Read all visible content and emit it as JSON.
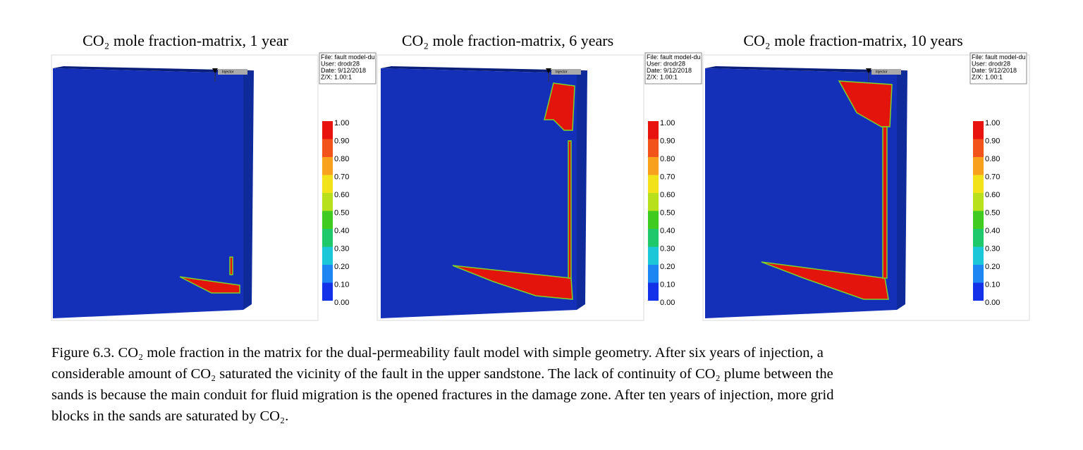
{
  "panels": [
    {
      "title": "CO₂ mole fraction-matrix, 1 year",
      "info": [
        "File: fault model-du",
        "User:  drodr28",
        "Date: 9/12/2018",
        "Z/X: 1.00:1"
      ],
      "injector": "Injector",
      "colorbar": [
        "1.00",
        "0.90",
        "0.80",
        "0.70",
        "0.60",
        "0.50",
        "0.40",
        "0.30",
        "0.20",
        "0.10",
        "0.00"
      ]
    },
    {
      "title": "CO₂ mole fraction-matrix, 6 years",
      "info": [
        "File: fault model-du",
        "User:  drodr28",
        "Date: 9/12/2018",
        "Z/X: 1.00:1"
      ],
      "injector": "Injector",
      "colorbar": [
        "1.00",
        "0.90",
        "0.80",
        "0.70",
        "0.60",
        "0.50",
        "0.40",
        "0.30",
        "0.20",
        "0.10",
        "0.00"
      ]
    },
    {
      "title": "CO₂ mole fraction-matrix, 10 years",
      "info": [
        "File: fault model-du",
        "User:  drodr28",
        "Date: 9/12/2018",
        "Z/X: 1.00:1"
      ],
      "injector": "Injector",
      "colorbar": [
        "1.00",
        "0.90",
        "0.80",
        "0.70",
        "0.60",
        "0.50",
        "0.40",
        "0.30",
        "0.20",
        "0.10",
        "0.00"
      ]
    }
  ],
  "caption": [
    "Figure 6.3. CO₂ mole fraction in the matrix for the dual-permeability fault model with simple geometry. After six years of injection, a",
    "considerable amount of CO₂ saturated the vicinity of the fault in the upper sandstone. The lack of continuity of CO₂ plume between the",
    "sands is because the main conduit for fluid migration is the opened fractures in the damage zone. After ten years of injection, more grid",
    "blocks in the sands are saturated by CO₂."
  ]
}
